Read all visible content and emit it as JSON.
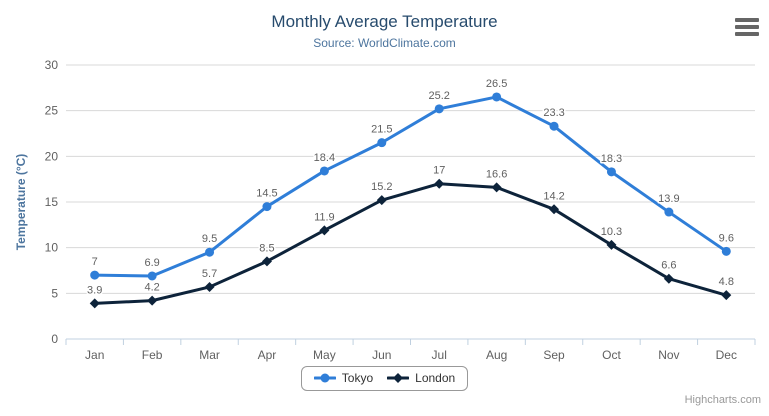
{
  "page": {
    "export_menu_icon": "hamburger-menu-icon",
    "credits_label": "Highcharts.com"
  },
  "chart_data": {
    "type": "line",
    "title": "Monthly Average Temperature",
    "subtitle": "Source: WorldClimate.com",
    "categories": [
      "Jan",
      "Feb",
      "Mar",
      "Apr",
      "May",
      "Jun",
      "Jul",
      "Aug",
      "Sep",
      "Oct",
      "Nov",
      "Dec"
    ],
    "xlabel": "",
    "ylabel": "Temperature (°C)",
    "ylim": [
      0,
      30
    ],
    "yticks": [
      0,
      5,
      10,
      15,
      20,
      25,
      30
    ],
    "grid": true,
    "legend_position": "bottom",
    "data_labels_visible": true,
    "series": [
      {
        "name": "Tokyo",
        "color": "#2f7ed8",
        "marker": "circle",
        "values": [
          7,
          6.9,
          9.5,
          14.5,
          18.4,
          21.5,
          25.2,
          26.5,
          23.3,
          18.3,
          13.9,
          9.6
        ]
      },
      {
        "name": "London",
        "color": "#0d233a",
        "marker": "diamond",
        "values": [
          3.9,
          4.2,
          5.7,
          8.5,
          11.9,
          15.2,
          17,
          16.6,
          14.2,
          10.3,
          6.6,
          4.8
        ]
      }
    ],
    "colors": {
      "title": "#274b6d",
      "subtitle": "#4d759e",
      "axis_title": "#4d759e",
      "axis_labels": "#606060",
      "data_labels": "#606060",
      "gridline": "#d8d8d8",
      "axis_line": "#c0d0e0",
      "tick": "#c0d0e0"
    }
  }
}
